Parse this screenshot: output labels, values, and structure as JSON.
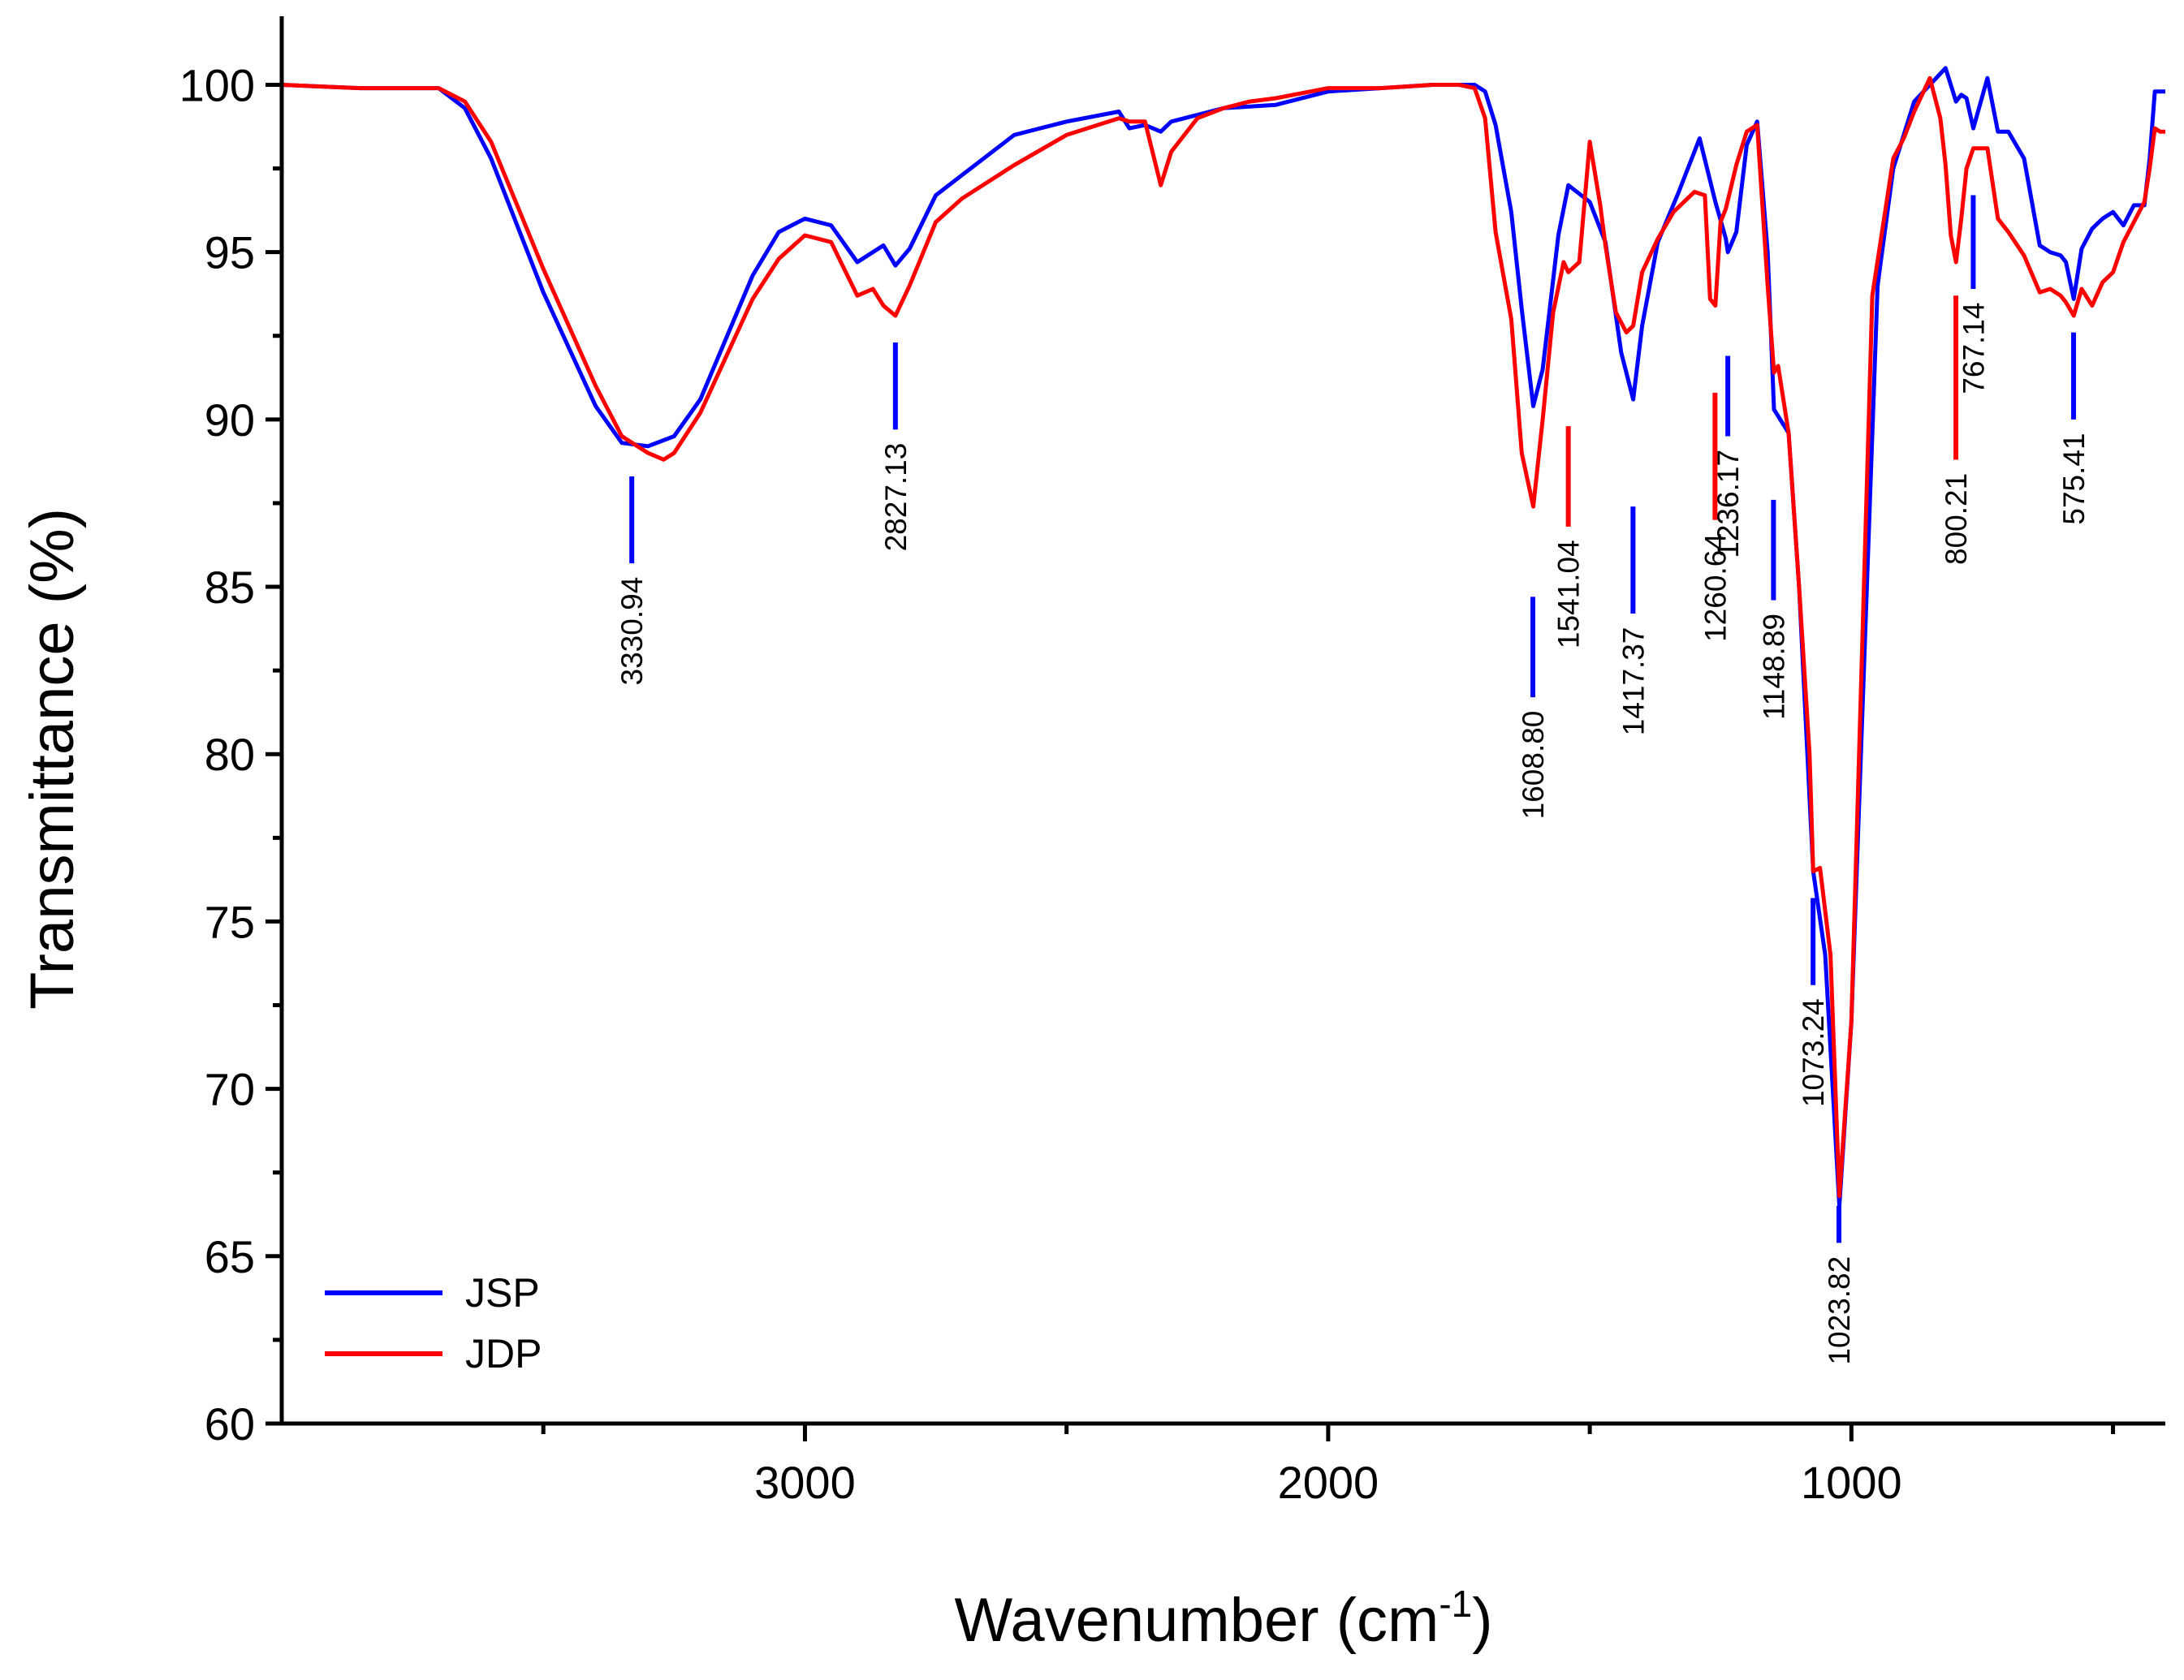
{
  "chart_data": {
    "type": "line",
    "xlabel": "Wavenumber (cm",
    "xlabel_superscript": "-1",
    "xlabel_close": ")",
    "ylabel": "Transmittance (%)",
    "xlim": [
      4000,
      400
    ],
    "ylim": [
      60,
      102
    ],
    "x_major_ticks": [
      3000,
      2000,
      1000
    ],
    "x_major_tick_labels": [
      "3000",
      "2000",
      "1000"
    ],
    "x_minor_ticks": [
      3500,
      2500,
      1500,
      500
    ],
    "y_ticks": [
      60,
      65,
      70,
      75,
      80,
      85,
      90,
      95,
      100
    ],
    "y_tick_labels": [
      "60",
      "65",
      "70",
      "75",
      "80",
      "85",
      "90",
      "95",
      "100"
    ],
    "grid": false,
    "legend_position": "bottom-left",
    "series": [
      {
        "name": "JSP",
        "color": "#0000ff",
        "x": [
          4000,
          3850,
          3700,
          3650,
          3600,
          3500,
          3400,
          3350,
          3300,
          3250,
          3200,
          3100,
          3050,
          3000,
          2950,
          2900,
          2850,
          2827,
          2800,
          2750,
          2700,
          2600,
          2500,
          2400,
          2380,
          2350,
          2320,
          2300,
          2250,
          2200,
          2100,
          2000,
          1900,
          1800,
          1750,
          1720,
          1700,
          1680,
          1650,
          1630,
          1608,
          1590,
          1560,
          1541,
          1500,
          1470,
          1440,
          1417,
          1400,
          1370,
          1330,
          1290,
          1260,
          1240,
          1236,
          1220,
          1200,
          1180,
          1160,
          1148,
          1120,
          1100,
          1073,
          1050,
          1023,
          1000,
          950,
          920,
          900,
          880,
          850,
          820,
          800,
          790,
          780,
          767,
          740,
          720,
          700,
          670,
          640,
          620,
          600,
          590,
          575,
          560,
          540,
          520,
          500,
          480,
          460,
          440,
          430,
          420,
          410,
          400
        ],
        "y": [
          100,
          99.9,
          99.9,
          99.3,
          97.8,
          93.8,
          90.4,
          89.3,
          89.2,
          89.5,
          90.6,
          94.3,
          95.6,
          96,
          95.8,
          94.7,
          95.2,
          94.6,
          95.1,
          96.7,
          97.3,
          98.5,
          98.9,
          99.2,
          98.7,
          98.8,
          98.6,
          98.9,
          99.1,
          99.3,
          99.4,
          99.8,
          99.9,
          100,
          100,
          100,
          99.8,
          98.8,
          96.2,
          93.3,
          90.4,
          91.5,
          95.5,
          97,
          96.5,
          95.3,
          92,
          90.6,
          92.8,
          95.3,
          96.8,
          98.4,
          96.5,
          95.4,
          95,
          95.6,
          98.2,
          98.9,
          95,
          90.3,
          89.6,
          85,
          76.5,
          74,
          66.5,
          72,
          94,
          97.5,
          98.5,
          99.5,
          100,
          100.5,
          99.5,
          99.7,
          99.6,
          98.7,
          100.2,
          98.6,
          98.6,
          97.8,
          95.2,
          95,
          94.9,
          94.7,
          93.6,
          95.1,
          95.7,
          96,
          96.2,
          95.8,
          96.4,
          96.4,
          97.8,
          99.8,
          99.8,
          99.8
        ]
      },
      {
        "name": "JDP",
        "color": "#ff0000",
        "x": [
          4000,
          3850,
          3700,
          3650,
          3600,
          3500,
          3400,
          3350,
          3300,
          3270,
          3250,
          3200,
          3100,
          3050,
          3000,
          2950,
          2900,
          2870,
          2850,
          2827,
          2800,
          2750,
          2700,
          2600,
          2500,
          2400,
          2380,
          2350,
          2320,
          2300,
          2250,
          2200,
          2150,
          2100,
          2000,
          1900,
          1800,
          1750,
          1720,
          1700,
          1680,
          1650,
          1630,
          1608,
          1590,
          1570,
          1550,
          1541,
          1520,
          1500,
          1480,
          1470,
          1450,
          1430,
          1417,
          1400,
          1370,
          1340,
          1300,
          1280,
          1270,
          1260,
          1250,
          1240,
          1220,
          1200,
          1180,
          1160,
          1148,
          1140,
          1120,
          1100,
          1080,
          1073,
          1060,
          1040,
          1023,
          1000,
          960,
          920,
          900,
          880,
          850,
          830,
          820,
          810,
          800,
          790,
          780,
          767,
          740,
          720,
          700,
          670,
          640,
          620,
          600,
          590,
          575,
          560,
          540,
          520,
          500,
          480,
          460,
          440,
          430,
          420,
          410,
          400
        ],
        "y": [
          100,
          99.9,
          99.9,
          99.5,
          98.3,
          94.5,
          91,
          89.5,
          89,
          88.8,
          89,
          90.2,
          93.6,
          94.8,
          95.5,
          95.3,
          93.7,
          93.9,
          93.4,
          93.1,
          94,
          95.9,
          96.6,
          97.6,
          98.5,
          99,
          98.9,
          98.9,
          97,
          98,
          99,
          99.3,
          99.5,
          99.6,
          99.9,
          99.9,
          100,
          100,
          99.9,
          99,
          95.6,
          93,
          89,
          87.4,
          90,
          93.2,
          94.7,
          94.4,
          94.7,
          98.3,
          96.4,
          95.2,
          93.2,
          92.6,
          92.8,
          94.4,
          95.4,
          96.2,
          96.8,
          96.7,
          93.6,
          93.4,
          95.9,
          96.3,
          97.6,
          98.6,
          98.8,
          94,
          91.4,
          91.6,
          89.6,
          85,
          80,
          76.5,
          76.6,
          74,
          66.8,
          72,
          93.7,
          97.8,
          98.4,
          99.2,
          100.2,
          99,
          97.6,
          95.5,
          94.7,
          96,
          97.5,
          98.1,
          98.1,
          96,
          95.6,
          94.9,
          93.8,
          93.9,
          93.7,
          93.5,
          93.1,
          93.9,
          93.4,
          94.1,
          94.4,
          95.3,
          95.9,
          96.5,
          97.5,
          98.7,
          98.6,
          98.6
        ]
      }
    ],
    "annotations": [
      {
        "label": "3330.94",
        "x": 3330.94,
        "color": "#0000ff",
        "bar_y": [
          85.7,
          88.3
        ],
        "text_anchor_y": 85.3
      },
      {
        "label": "2827.13",
        "x": 2827.13,
        "color": "#0000ff",
        "bar_y": [
          89.7,
          92.3
        ],
        "text_anchor_y": 89.3
      },
      {
        "label": "1608.80",
        "x": 1608.8,
        "color": "#0000ff",
        "bar_y": [
          81.7,
          84.7
        ],
        "text_anchor_y": 81.3
      },
      {
        "label": "1541.04",
        "x": 1541.04,
        "color": "#ff0000",
        "bar_y": [
          86.8,
          89.8
        ],
        "text_anchor_y": 86.4
      },
      {
        "label": "1417.37",
        "x": 1417.37,
        "color": "#0000ff",
        "bar_y": [
          84.2,
          87.4
        ],
        "text_anchor_y": 83.8
      },
      {
        "label": "1260.64",
        "x": 1260.64,
        "color": "#ff0000",
        "bar_y": [
          87,
          90.8
        ],
        "text_anchor_y": 86.6
      },
      {
        "label": "1236.17",
        "x": 1236.17,
        "color": "#0000ff",
        "bar_y": [
          89.5,
          91.9
        ],
        "text_anchor_y": 89.1
      },
      {
        "label": "1148.89",
        "x": 1148.89,
        "color": "#0000ff",
        "bar_y": [
          84.6,
          87.6
        ],
        "text_anchor_y": 84.2
      },
      {
        "label": "1073.24",
        "x": 1073.24,
        "color": "#0000ff",
        "bar_y": [
          73.1,
          75.7
        ],
        "text_anchor_y": 72.7
      },
      {
        "label": "1023.82",
        "x": 1023.82,
        "color": "#0000ff",
        "bar_y": [
          65.4,
          66.5
        ],
        "text_anchor_y": 65.0
      },
      {
        "label": "800.21",
        "x": 800.21,
        "color": "#ff0000",
        "bar_y": [
          88.8,
          93.7
        ],
        "text_anchor_y": 88.4
      },
      {
        "label": "767.14",
        "x": 767.14,
        "color": "#0000ff",
        "bar_y": [
          93.9,
          96.7
        ],
        "text_anchor_y": 93.5
      },
      {
        "label": "575.41",
        "x": 575.41,
        "color": "#0000ff",
        "bar_y": [
          90,
          92.6
        ],
        "text_anchor_y": 89.6
      }
    ]
  }
}
